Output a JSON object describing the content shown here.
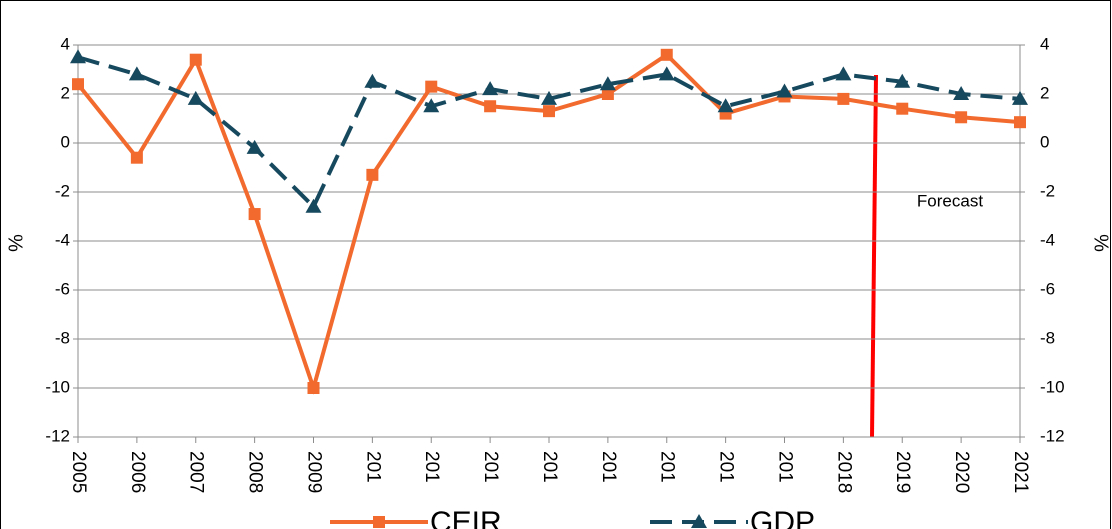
{
  "chart_data": {
    "type": "line",
    "categories": [
      "2005",
      "2006",
      "2007",
      "2008",
      "2009",
      "201",
      "201",
      "201",
      "201",
      "201",
      "201",
      "201",
      "201",
      "2018",
      "2019",
      "2020",
      "2021"
    ],
    "series": [
      {
        "name": "CEIR",
        "color": "#f26a2e",
        "marker": "square",
        "dashed": false,
        "values": [
          2.4,
          -0.6,
          3.4,
          -2.9,
          -10,
          -1.3,
          2.3,
          1.5,
          1.3,
          2.0,
          3.6,
          1.2,
          1.9,
          1.8,
          1.4,
          1.05,
          0.85
        ]
      },
      {
        "name": "GDP",
        "color": "#17495e",
        "marker": "triangle",
        "dashed": true,
        "values": [
          3.5,
          2.8,
          1.8,
          -0.2,
          -2.6,
          2.5,
          1.5,
          2.2,
          1.8,
          2.4,
          2.8,
          1.5,
          2.1,
          2.8,
          2.5,
          2.0,
          1.8
        ]
      }
    ],
    "ylabel": "%",
    "y2label": "%",
    "ylim": [
      -12,
      4
    ],
    "yticks": [
      -12,
      -10,
      -8,
      -6,
      -4,
      -2,
      0,
      2,
      4
    ],
    "y2lim": [
      -12,
      4
    ],
    "y2ticks": [
      -12,
      -10,
      -8,
      -6,
      -4,
      -2,
      0,
      2,
      4
    ],
    "grid": true,
    "legend": "bottom",
    "annotations": [
      "Forecast"
    ]
  }
}
